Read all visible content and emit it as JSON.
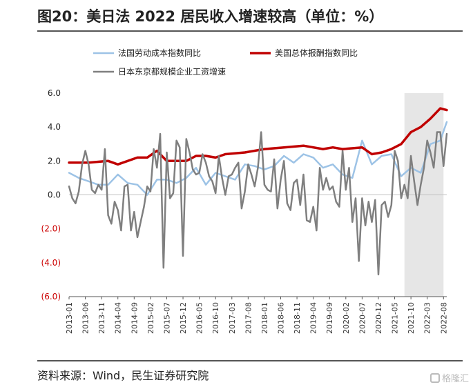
{
  "header": {
    "title": "图20：美日法 2022 居民收入增速较高（单位：%）"
  },
  "footer": {
    "source": "资料来源：Wind，民生证券研究院",
    "watermark": "格隆汇"
  },
  "chart_data": {
    "type": "line",
    "title": "图20：美日法 2022 居民收入增速较高（单位：%）",
    "xlabel": "",
    "ylabel": "",
    "ylim": [
      -6,
      6
    ],
    "yticks": [
      {
        "label": "6.0",
        "value": 6,
        "color": "#222222"
      },
      {
        "label": "4.0",
        "value": 4,
        "color": "#222222"
      },
      {
        "label": "2.0",
        "value": 2,
        "color": "#222222"
      },
      {
        "label": "0.0",
        "value": 0,
        "color": "#222222"
      },
      {
        "label": "(2.0)",
        "value": -2,
        "color": "#cc0000"
      },
      {
        "label": "(4.0)",
        "value": -4,
        "color": "#cc0000"
      },
      {
        "label": "(6.0)",
        "value": -6,
        "color": "#cc0000"
      }
    ],
    "xticks": [
      "2013-01",
      "2013-06",
      "2013-11",
      "2014-04",
      "2014-09",
      "2015-02",
      "2015-07",
      "2015-12",
      "2016-05",
      "2016-10",
      "2017-03",
      "2017-08",
      "2018-01",
      "2018-06",
      "2018-11",
      "2019-04",
      "2019-09",
      "2020-02",
      "2020-07",
      "2020-12",
      "2021-05",
      "2021-10",
      "2022-03",
      "2022-08"
    ],
    "shaded_region": {
      "from": "2021-08",
      "to": "2022-08",
      "color": "#e6e6e6"
    },
    "grid": false,
    "legend_position": "top",
    "series": [
      {
        "name": "法国劳动成本指数同比",
        "color": "#9dc3e6",
        "width": 2.5,
        "points": [
          [
            "2013-01",
            1.3
          ],
          [
            "2013-04",
            1.0
          ],
          [
            "2013-07",
            0.8
          ],
          [
            "2013-10",
            0.6
          ],
          [
            "2014-01",
            0.6
          ],
          [
            "2014-04",
            1.2
          ],
          [
            "2014-07",
            0.7
          ],
          [
            "2014-10",
            0.6
          ],
          [
            "2015-01",
            0.0
          ],
          [
            "2015-04",
            0.9
          ],
          [
            "2015-07",
            0.9
          ],
          [
            "2015-10",
            0.7
          ],
          [
            "2016-01",
            1.0
          ],
          [
            "2016-04",
            1.6
          ],
          [
            "2016-07",
            0.6
          ],
          [
            "2016-10",
            1.3
          ],
          [
            "2017-01",
            1.1
          ],
          [
            "2017-04",
            0.9
          ],
          [
            "2017-07",
            1.8
          ],
          [
            "2017-10",
            1.7
          ],
          [
            "2018-01",
            1.5
          ],
          [
            "2018-04",
            1.7
          ],
          [
            "2018-07",
            2.3
          ],
          [
            "2018-10",
            1.9
          ],
          [
            "2019-01",
            2.4
          ],
          [
            "2019-04",
            2.2
          ],
          [
            "2019-07",
            1.6
          ],
          [
            "2019-10",
            1.8
          ],
          [
            "2020-01",
            1.2
          ],
          [
            "2020-04",
            1.0
          ],
          [
            "2020-07",
            3.2
          ],
          [
            "2020-10",
            1.8
          ],
          [
            "2021-01",
            2.3
          ],
          [
            "2021-04",
            2.4
          ],
          [
            "2021-07",
            1.1
          ],
          [
            "2021-10",
            1.6
          ],
          [
            "2022-01",
            1.3
          ],
          [
            "2022-04",
            3.0
          ],
          [
            "2022-07",
            3.2
          ],
          [
            "2022-09",
            4.3
          ]
        ]
      },
      {
        "name": "美国总体报酬指数同比",
        "color": "#c00000",
        "width": 3.5,
        "points": [
          [
            "2013-01",
            1.9
          ],
          [
            "2013-07",
            1.9
          ],
          [
            "2014-01",
            2.0
          ],
          [
            "2014-04",
            1.8
          ],
          [
            "2014-10",
            2.2
          ],
          [
            "2015-01",
            2.2
          ],
          [
            "2015-04",
            2.6
          ],
          [
            "2015-07",
            2.0
          ],
          [
            "2015-10",
            2.0
          ],
          [
            "2016-01",
            2.0
          ],
          [
            "2016-04",
            2.3
          ],
          [
            "2016-07",
            2.3
          ],
          [
            "2016-10",
            2.2
          ],
          [
            "2017-01",
            2.4
          ],
          [
            "2017-07",
            2.5
          ],
          [
            "2018-01",
            2.7
          ],
          [
            "2018-07",
            2.8
          ],
          [
            "2019-01",
            2.9
          ],
          [
            "2019-07",
            2.7
          ],
          [
            "2019-10",
            2.8
          ],
          [
            "2020-01",
            2.7
          ],
          [
            "2020-07",
            2.8
          ],
          [
            "2020-10",
            2.4
          ],
          [
            "2021-01",
            2.5
          ],
          [
            "2021-04",
            2.7
          ],
          [
            "2021-07",
            3.0
          ],
          [
            "2021-10",
            3.7
          ],
          [
            "2022-01",
            4.0
          ],
          [
            "2022-04",
            4.5
          ],
          [
            "2022-07",
            5.1
          ],
          [
            "2022-09",
            5.0
          ]
        ]
      },
      {
        "name": "日本东京都规模企业工资增速",
        "color": "#7f7f7f",
        "width": 2.5,
        "points": [
          [
            "2013-01",
            0.5
          ],
          [
            "2013-02",
            -0.2
          ],
          [
            "2013-03",
            -0.5
          ],
          [
            "2013-04",
            0.2
          ],
          [
            "2013-05",
            1.8
          ],
          [
            "2013-06",
            2.6
          ],
          [
            "2013-07",
            1.8
          ],
          [
            "2013-08",
            0.3
          ],
          [
            "2013-09",
            0.1
          ],
          [
            "2013-10",
            0.6
          ],
          [
            "2013-11",
            0.3
          ],
          [
            "2013-12",
            2.7
          ],
          [
            "2014-01",
            -1.2
          ],
          [
            "2014-02",
            -1.7
          ],
          [
            "2014-03",
            -0.4
          ],
          [
            "2014-04",
            -0.9
          ],
          [
            "2014-05",
            -2.1
          ],
          [
            "2014-06",
            0.5
          ],
          [
            "2014-07",
            0.6
          ],
          [
            "2014-08",
            -2.1
          ],
          [
            "2014-09",
            -1.0
          ],
          [
            "2014-10",
            -2.5
          ],
          [
            "2014-11",
            -1.6
          ],
          [
            "2014-12",
            -0.7
          ],
          [
            "2015-01",
            0.5
          ],
          [
            "2015-02",
            0.2
          ],
          [
            "2015-03",
            2.7
          ],
          [
            "2015-04",
            1.6
          ],
          [
            "2015-05",
            3.6
          ],
          [
            "2015-06",
            -4.3
          ],
          [
            "2015-07",
            2.5
          ],
          [
            "2015-08",
            -0.2
          ],
          [
            "2015-09",
            0.1
          ],
          [
            "2015-10",
            3.2
          ],
          [
            "2015-11",
            2.8
          ],
          [
            "2015-12",
            -3.6
          ],
          [
            "2016-01",
            3.3
          ],
          [
            "2016-02",
            2.5
          ],
          [
            "2016-03",
            1.5
          ],
          [
            "2016-04",
            1.2
          ],
          [
            "2016-05",
            1.3
          ],
          [
            "2016-06",
            2.4
          ],
          [
            "2016-07",
            1.9
          ],
          [
            "2016-08",
            1.1
          ],
          [
            "2016-09",
            0.8
          ],
          [
            "2016-10",
            0.1
          ],
          [
            "2016-11",
            2.3
          ],
          [
            "2016-12",
            1.0
          ],
          [
            "2017-01",
            0.0
          ],
          [
            "2017-02",
            1.1
          ],
          [
            "2017-03",
            1.2
          ],
          [
            "2017-04",
            1.6
          ],
          [
            "2017-05",
            1.9
          ],
          [
            "2017-06",
            -0.8
          ],
          [
            "2017-07",
            0.2
          ],
          [
            "2017-08",
            1.8
          ],
          [
            "2017-09",
            1.2
          ],
          [
            "2017-10",
            0.5
          ],
          [
            "2017-11",
            1.6
          ],
          [
            "2017-12",
            3.7
          ],
          [
            "2018-01",
            0.6
          ],
          [
            "2018-02",
            0.3
          ],
          [
            "2018-03",
            0.2
          ],
          [
            "2018-04",
            2.1
          ],
          [
            "2018-05",
            -0.8
          ],
          [
            "2018-06",
            0.9
          ],
          [
            "2018-07",
            2.0
          ],
          [
            "2018-08",
            -0.5
          ],
          [
            "2018-09",
            -0.9
          ],
          [
            "2018-10",
            0.7
          ],
          [
            "2018-11",
            0.9
          ],
          [
            "2018-12",
            -0.6
          ],
          [
            "2019-01",
            1.2
          ],
          [
            "2019-02",
            -1.5
          ],
          [
            "2019-03",
            -1.6
          ],
          [
            "2019-04",
            -0.7
          ],
          [
            "2019-05",
            -2.1
          ],
          [
            "2019-06",
            1.6
          ],
          [
            "2019-07",
            0.3
          ],
          [
            "2019-08",
            1.0
          ],
          [
            "2019-09",
            0.3
          ],
          [
            "2019-10",
            0.5
          ],
          [
            "2019-11",
            -0.4
          ],
          [
            "2019-12",
            -0.7
          ],
          [
            "2020-01",
            2.6
          ],
          [
            "2020-02",
            0.3
          ],
          [
            "2020-03",
            1.6
          ],
          [
            "2020-04",
            -1.6
          ],
          [
            "2020-05",
            -0.2
          ],
          [
            "2020-06",
            -3.9
          ],
          [
            "2020-07",
            -0.2
          ],
          [
            "2020-08",
            -1.8
          ],
          [
            "2020-09",
            -0.4
          ],
          [
            "2020-10",
            -1.6
          ],
          [
            "2020-11",
            -0.3
          ],
          [
            "2020-12",
            -4.7
          ],
          [
            "2021-01",
            -0.6
          ],
          [
            "2021-02",
            -0.4
          ],
          [
            "2021-03",
            -1.3
          ],
          [
            "2021-04",
            -0.6
          ],
          [
            "2021-05",
            2.6
          ],
          [
            "2021-06",
            2.0
          ],
          [
            "2021-07",
            -0.2
          ],
          [
            "2021-08",
            0.6
          ],
          [
            "2021-09",
            -0.2
          ],
          [
            "2021-10",
            2.3
          ],
          [
            "2021-11",
            0.8
          ],
          [
            "2021-12",
            -0.6
          ],
          [
            "2022-01",
            0.6
          ],
          [
            "2022-02",
            1.6
          ],
          [
            "2022-03",
            3.2
          ],
          [
            "2022-04",
            2.5
          ],
          [
            "2022-05",
            1.6
          ],
          [
            "2022-06",
            3.7
          ],
          [
            "2022-07",
            3.7
          ],
          [
            "2022-08",
            1.7
          ],
          [
            "2022-09",
            3.6
          ]
        ]
      }
    ]
  }
}
